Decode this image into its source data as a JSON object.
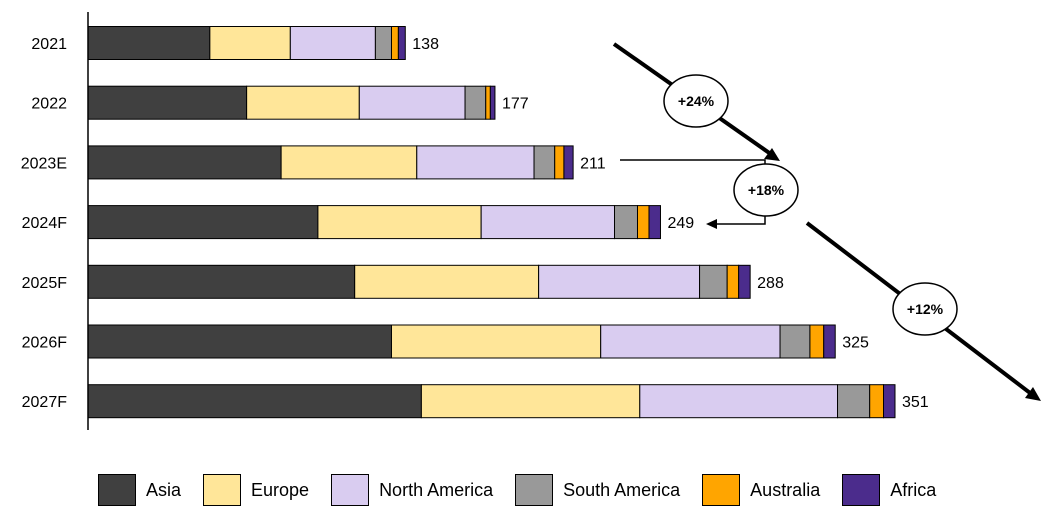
{
  "chart_data": {
    "type": "bar",
    "orientation": "horizontal",
    "stacked": true,
    "categories": [
      "2021",
      "2022",
      "2023E",
      "2024F",
      "2025F",
      "2026F",
      "2027F"
    ],
    "series": [
      {
        "name": "Asia",
        "color": "#404040",
        "values": [
          53,
          69,
          84,
          100,
          116,
          132,
          145
        ]
      },
      {
        "name": "Europe",
        "color": "#FFE699",
        "values": [
          35,
          49,
          59,
          71,
          80,
          91,
          95
        ]
      },
      {
        "name": "North America",
        "color": "#D9CCF0",
        "values": [
          37,
          46,
          51,
          58,
          70,
          78,
          86
        ]
      },
      {
        "name": "South America",
        "color": "#999999",
        "values": [
          7,
          9,
          9,
          10,
          12,
          13,
          14
        ]
      },
      {
        "name": "Australia",
        "color": "#FFA500",
        "values": [
          3,
          2,
          4,
          5,
          5,
          6,
          6
        ]
      },
      {
        "name": "Africa",
        "color": "#4B2C8C",
        "values": [
          3,
          2,
          4,
          5,
          5,
          5,
          5
        ]
      }
    ],
    "totals": [
      138,
      177,
      211,
      249,
      288,
      325,
      351
    ],
    "growth_annotations": [
      {
        "text": "+24%",
        "from": "2021",
        "to": "2023E"
      },
      {
        "text": "+18%",
        "from": "2023E",
        "to": "2024F"
      },
      {
        "text": "+12%",
        "from": "2024F",
        "to": "2027F"
      }
    ],
    "xlim": [
      0,
      351
    ],
    "legend_position": "bottom",
    "grid": false
  }
}
